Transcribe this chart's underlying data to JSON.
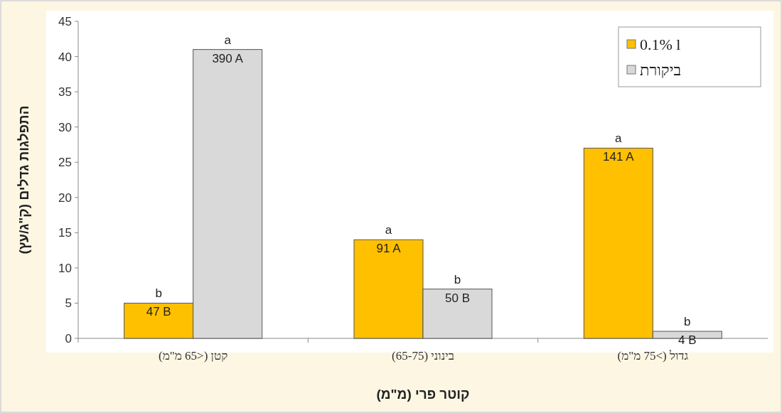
{
  "chart_data": {
    "type": "bar",
    "xlabel": "קוטר פרי (מ\"מ)",
    "ylabel": "התפלגות גדלים (ק\"ג/עץ)",
    "categories": [
      "קטן (<65 מ\"מ)",
      "בינוני (65-75)",
      "גדול (>75 מ\"מ)"
    ],
    "series": [
      {
        "name": "0.1% l",
        "color": "#ffc000",
        "values": [
          5,
          14,
          27
        ]
      },
      {
        "name": "ביקורת",
        "color": "#d9d9d9",
        "values": [
          41,
          7,
          1
        ]
      }
    ],
    "annotations": [
      {
        "text": "b",
        "x": "קטן (<65 מ\"מ)",
        "y": 5
      },
      {
        "text": "a",
        "x": "קטן (<65 מ\"מ)",
        "y": 41
      },
      {
        "text": "a",
        "x": "בינוני (65-75)",
        "y": 14
      },
      {
        "text": "b",
        "x": "בינוני (65-75)",
        "y": 7
      },
      {
        "text": "a",
        "x": "גדול (>75 מ\"מ)",
        "y": 27
      },
      {
        "text": "b",
        "x": "גדול (>75 מ\"מ)",
        "y": 1
      },
      {
        "text": "47 B",
        "x": "קטן (<65 מ\"מ)",
        "y": 5
      },
      {
        "text": "390 A",
        "x": "קטן (<65 מ\"מ)",
        "y": 41
      },
      {
        "text": "91 A",
        "x": "בינוני (65-75)",
        "y": 14
      },
      {
        "text": "50 B",
        "x": "בינוני (65-75)",
        "y": 7
      },
      {
        "text": "141 A",
        "x": "גדול (>75 מ\"מ)",
        "y": 27
      },
      {
        "text": "4 B",
        "x": "גדול (>75 מ\"מ)",
        "y": 1
      }
    ],
    "ylim": [
      0,
      45
    ],
    "yticks": [
      0,
      5,
      10,
      15,
      20,
      25,
      30,
      35,
      40,
      45
    ],
    "grid": false,
    "legend": "top right"
  }
}
